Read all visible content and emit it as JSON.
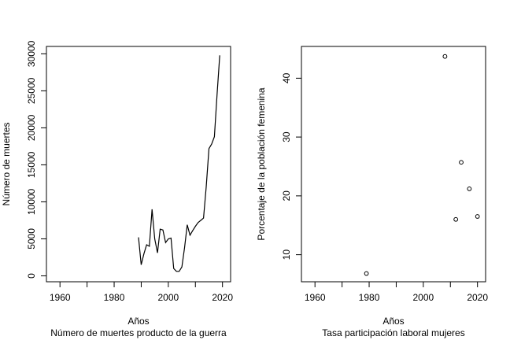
{
  "chart_data": [
    {
      "type": "line",
      "title": "",
      "xlabel": "Años",
      "subtitle": "Número de muertes producto de la guerra",
      "ylabel": "Número de muertes",
      "xlim": [
        1955,
        2023
      ],
      "ylim": [
        -800,
        31000
      ],
      "xticks": [
        1960,
        1970,
        1980,
        1990,
        2000,
        2010,
        2020
      ],
      "xtick_labels": [
        "1960",
        "",
        "1980",
        "",
        "2000",
        "",
        "2020"
      ],
      "yticks": [
        0,
        5000,
        10000,
        15000,
        20000,
        25000,
        30000
      ],
      "ytick_labels": [
        "0",
        "5000",
        "10000",
        "15000",
        "20000",
        "25000",
        "30000"
      ],
      "series": [
        {
          "x": [
            1989,
            1990,
            1991,
            1992,
            1993,
            1994,
            1995,
            1996,
            1997,
            1998,
            1999,
            2000,
            2001,
            2002,
            2003,
            2004,
            2005,
            2006,
            2007,
            2008,
            2009,
            2010,
            2011,
            2012,
            2013,
            2014,
            2015,
            2016,
            2017,
            2018,
            2019
          ],
          "y": [
            5200,
            1500,
            3000,
            4200,
            4000,
            9000,
            5000,
            3100,
            6300,
            6200,
            4500,
            5000,
            5100,
            1000,
            600,
            600,
            1200,
            3800,
            6900,
            5500,
            6100,
            6700,
            7200,
            7500,
            7800,
            12000,
            17200,
            17800,
            18800,
            24500,
            29800
          ]
        }
      ]
    },
    {
      "type": "scatter",
      "title": "",
      "xlabel": "Años",
      "subtitle": "Tasa participación laboral mujeres",
      "ylabel": "Porcentaje de la población femenina",
      "xlim": [
        1955,
        2023
      ],
      "ylim": [
        5.4,
        45.4
      ],
      "xticks": [
        1960,
        1970,
        1980,
        1990,
        2000,
        2010,
        2020
      ],
      "xtick_labels": [
        "1960",
        "",
        "1980",
        "",
        "2000",
        "",
        "2020"
      ],
      "yticks": [
        10,
        20,
        30,
        40
      ],
      "ytick_labels": [
        "10",
        "20",
        "30",
        "40"
      ],
      "series": [
        {
          "x": [
            1979,
            2008,
            2012,
            2014,
            2017,
            2020
          ],
          "y": [
            6.8,
            43.7,
            16.0,
            25.7,
            21.2,
            16.5
          ]
        }
      ]
    }
  ]
}
